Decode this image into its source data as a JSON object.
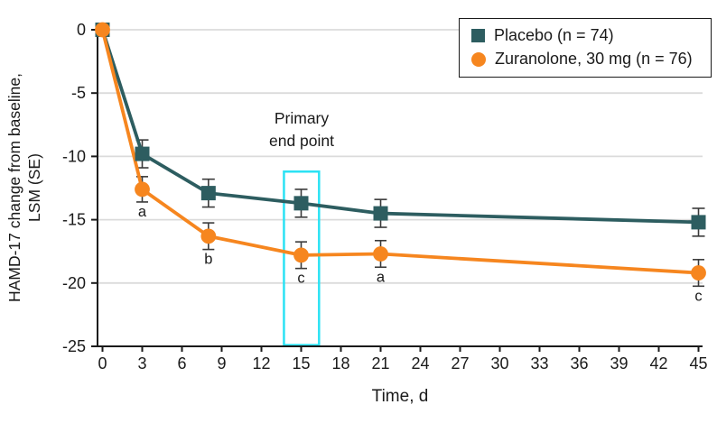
{
  "axes": {
    "y_label_line1": "HAMD-17 change from baseline,",
    "y_label_line2": "LSM (SE)",
    "x_label": "Time, d"
  },
  "annotation": {
    "line1": "Primary",
    "line2": "end point"
  },
  "legend": {
    "position": "top-right",
    "items": [
      {
        "label": "Placebo (n = 74)",
        "marker": "square",
        "color": "#2D5D60"
      },
      {
        "label": "Zuranolone, 30 mg (n = 76)",
        "marker": "circle",
        "color": "#F6861F"
      }
    ]
  },
  "chart_data": {
    "type": "line",
    "x": [
      0,
      3,
      8,
      15,
      21,
      45
    ],
    "series": [
      {
        "name": "Placebo (n = 74)",
        "marker": "square",
        "color": "#2D5D60",
        "values": [
          0,
          -9.8,
          -12.9,
          -13.7,
          -14.5,
          -15.2
        ],
        "se": [
          0,
          1.1,
          1.1,
          1.1,
          1.1,
          1.1
        ],
        "significance_letters": [
          "",
          "",
          "",
          "",
          "",
          ""
        ]
      },
      {
        "name": "Zuranolone, 30 mg (n = 76)",
        "marker": "circle",
        "color": "#F6861F",
        "values": [
          0,
          -12.6,
          -16.3,
          -17.8,
          -17.7,
          -19.2
        ],
        "se": [
          0,
          1.0,
          1.05,
          1.05,
          1.05,
          1.05
        ],
        "significance_letters": [
          "",
          "a",
          "b",
          "c",
          "a",
          "c"
        ]
      }
    ],
    "title": "",
    "xlabel": "Time, d",
    "ylabel": "HAMD-17 change from baseline, LSM (SE)",
    "xlim": [
      0,
      45
    ],
    "ylim": [
      -25,
      0
    ],
    "xticks": [
      0,
      3,
      6,
      9,
      12,
      15,
      18,
      21,
      24,
      27,
      30,
      33,
      36,
      39,
      42,
      45
    ],
    "yticks": [
      0,
      -5,
      -10,
      -15,
      -20,
      -25
    ],
    "grid": "horizontal-only",
    "legend_position": "top-right",
    "annotation_box": {
      "label": "Primary end point",
      "x_range": [
        13.7,
        16.35
      ],
      "y_range": [
        -24.9,
        -11.2
      ],
      "border_color": "#2BE2F4"
    },
    "colors": {
      "grid": "#DBDBDB",
      "axis": "#1A1A1A",
      "error_bar": "#3A3A3A",
      "text": "#1A1A1A"
    }
  }
}
